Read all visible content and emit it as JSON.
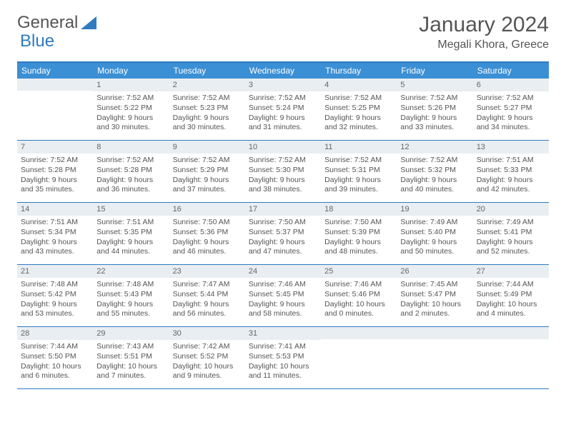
{
  "brand": {
    "word1": "General",
    "word2": "Blue"
  },
  "title": "January 2024",
  "location": "Megali Khora, Greece",
  "colors": {
    "header_bg": "#3b8fd4",
    "header_text": "#ffffff",
    "border": "#2f7bbf",
    "daybar_bg": "#e9eef2",
    "text": "#555555"
  },
  "weekdays": [
    "Sunday",
    "Monday",
    "Tuesday",
    "Wednesday",
    "Thursday",
    "Friday",
    "Saturday"
  ],
  "weeks": [
    [
      {
        "n": "",
        "sr": "",
        "ss": "",
        "dl1": "",
        "dl2": ""
      },
      {
        "n": "1",
        "sr": "Sunrise: 7:52 AM",
        "ss": "Sunset: 5:22 PM",
        "dl1": "Daylight: 9 hours",
        "dl2": "and 30 minutes."
      },
      {
        "n": "2",
        "sr": "Sunrise: 7:52 AM",
        "ss": "Sunset: 5:23 PM",
        "dl1": "Daylight: 9 hours",
        "dl2": "and 30 minutes."
      },
      {
        "n": "3",
        "sr": "Sunrise: 7:52 AM",
        "ss": "Sunset: 5:24 PM",
        "dl1": "Daylight: 9 hours",
        "dl2": "and 31 minutes."
      },
      {
        "n": "4",
        "sr": "Sunrise: 7:52 AM",
        "ss": "Sunset: 5:25 PM",
        "dl1": "Daylight: 9 hours",
        "dl2": "and 32 minutes."
      },
      {
        "n": "5",
        "sr": "Sunrise: 7:52 AM",
        "ss": "Sunset: 5:26 PM",
        "dl1": "Daylight: 9 hours",
        "dl2": "and 33 minutes."
      },
      {
        "n": "6",
        "sr": "Sunrise: 7:52 AM",
        "ss": "Sunset: 5:27 PM",
        "dl1": "Daylight: 9 hours",
        "dl2": "and 34 minutes."
      }
    ],
    [
      {
        "n": "7",
        "sr": "Sunrise: 7:52 AM",
        "ss": "Sunset: 5:28 PM",
        "dl1": "Daylight: 9 hours",
        "dl2": "and 35 minutes."
      },
      {
        "n": "8",
        "sr": "Sunrise: 7:52 AM",
        "ss": "Sunset: 5:28 PM",
        "dl1": "Daylight: 9 hours",
        "dl2": "and 36 minutes."
      },
      {
        "n": "9",
        "sr": "Sunrise: 7:52 AM",
        "ss": "Sunset: 5:29 PM",
        "dl1": "Daylight: 9 hours",
        "dl2": "and 37 minutes."
      },
      {
        "n": "10",
        "sr": "Sunrise: 7:52 AM",
        "ss": "Sunset: 5:30 PM",
        "dl1": "Daylight: 9 hours",
        "dl2": "and 38 minutes."
      },
      {
        "n": "11",
        "sr": "Sunrise: 7:52 AM",
        "ss": "Sunset: 5:31 PM",
        "dl1": "Daylight: 9 hours",
        "dl2": "and 39 minutes."
      },
      {
        "n": "12",
        "sr": "Sunrise: 7:52 AM",
        "ss": "Sunset: 5:32 PM",
        "dl1": "Daylight: 9 hours",
        "dl2": "and 40 minutes."
      },
      {
        "n": "13",
        "sr": "Sunrise: 7:51 AM",
        "ss": "Sunset: 5:33 PM",
        "dl1": "Daylight: 9 hours",
        "dl2": "and 42 minutes."
      }
    ],
    [
      {
        "n": "14",
        "sr": "Sunrise: 7:51 AM",
        "ss": "Sunset: 5:34 PM",
        "dl1": "Daylight: 9 hours",
        "dl2": "and 43 minutes."
      },
      {
        "n": "15",
        "sr": "Sunrise: 7:51 AM",
        "ss": "Sunset: 5:35 PM",
        "dl1": "Daylight: 9 hours",
        "dl2": "and 44 minutes."
      },
      {
        "n": "16",
        "sr": "Sunrise: 7:50 AM",
        "ss": "Sunset: 5:36 PM",
        "dl1": "Daylight: 9 hours",
        "dl2": "and 46 minutes."
      },
      {
        "n": "17",
        "sr": "Sunrise: 7:50 AM",
        "ss": "Sunset: 5:37 PM",
        "dl1": "Daylight: 9 hours",
        "dl2": "and 47 minutes."
      },
      {
        "n": "18",
        "sr": "Sunrise: 7:50 AM",
        "ss": "Sunset: 5:39 PM",
        "dl1": "Daylight: 9 hours",
        "dl2": "and 48 minutes."
      },
      {
        "n": "19",
        "sr": "Sunrise: 7:49 AM",
        "ss": "Sunset: 5:40 PM",
        "dl1": "Daylight: 9 hours",
        "dl2": "and 50 minutes."
      },
      {
        "n": "20",
        "sr": "Sunrise: 7:49 AM",
        "ss": "Sunset: 5:41 PM",
        "dl1": "Daylight: 9 hours",
        "dl2": "and 52 minutes."
      }
    ],
    [
      {
        "n": "21",
        "sr": "Sunrise: 7:48 AM",
        "ss": "Sunset: 5:42 PM",
        "dl1": "Daylight: 9 hours",
        "dl2": "and 53 minutes."
      },
      {
        "n": "22",
        "sr": "Sunrise: 7:48 AM",
        "ss": "Sunset: 5:43 PM",
        "dl1": "Daylight: 9 hours",
        "dl2": "and 55 minutes."
      },
      {
        "n": "23",
        "sr": "Sunrise: 7:47 AM",
        "ss": "Sunset: 5:44 PM",
        "dl1": "Daylight: 9 hours",
        "dl2": "and 56 minutes."
      },
      {
        "n": "24",
        "sr": "Sunrise: 7:46 AM",
        "ss": "Sunset: 5:45 PM",
        "dl1": "Daylight: 9 hours",
        "dl2": "and 58 minutes."
      },
      {
        "n": "25",
        "sr": "Sunrise: 7:46 AM",
        "ss": "Sunset: 5:46 PM",
        "dl1": "Daylight: 10 hours",
        "dl2": "and 0 minutes."
      },
      {
        "n": "26",
        "sr": "Sunrise: 7:45 AM",
        "ss": "Sunset: 5:47 PM",
        "dl1": "Daylight: 10 hours",
        "dl2": "and 2 minutes."
      },
      {
        "n": "27",
        "sr": "Sunrise: 7:44 AM",
        "ss": "Sunset: 5:49 PM",
        "dl1": "Daylight: 10 hours",
        "dl2": "and 4 minutes."
      }
    ],
    [
      {
        "n": "28",
        "sr": "Sunrise: 7:44 AM",
        "ss": "Sunset: 5:50 PM",
        "dl1": "Daylight: 10 hours",
        "dl2": "and 6 minutes."
      },
      {
        "n": "29",
        "sr": "Sunrise: 7:43 AM",
        "ss": "Sunset: 5:51 PM",
        "dl1": "Daylight: 10 hours",
        "dl2": "and 7 minutes."
      },
      {
        "n": "30",
        "sr": "Sunrise: 7:42 AM",
        "ss": "Sunset: 5:52 PM",
        "dl1": "Daylight: 10 hours",
        "dl2": "and 9 minutes."
      },
      {
        "n": "31",
        "sr": "Sunrise: 7:41 AM",
        "ss": "Sunset: 5:53 PM",
        "dl1": "Daylight: 10 hours",
        "dl2": "and 11 minutes."
      },
      {
        "n": "",
        "sr": "",
        "ss": "",
        "dl1": "",
        "dl2": ""
      },
      {
        "n": "",
        "sr": "",
        "ss": "",
        "dl1": "",
        "dl2": ""
      },
      {
        "n": "",
        "sr": "",
        "ss": "",
        "dl1": "",
        "dl2": ""
      }
    ]
  ]
}
